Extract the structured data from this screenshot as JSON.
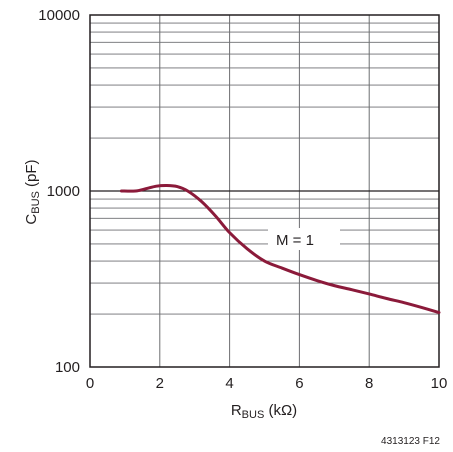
{
  "chart_data": {
    "type": "line",
    "xlabel": {
      "main": "R",
      "sub": "BUS",
      "unit": " (kΩ)"
    },
    "ylabel": {
      "main": "C",
      "sub": "BUS",
      "unit": " (pF)"
    },
    "xlim": [
      0,
      10
    ],
    "ylim": [
      100,
      10000
    ],
    "yscale": "log",
    "grid": true,
    "x_ticks": [
      "0",
      "2",
      "4",
      "6",
      "8",
      "10"
    ],
    "y_ticks": [
      "100",
      "1000",
      "10000"
    ],
    "series": [
      {
        "name": "M = 1",
        "color": "#8b1a3a",
        "x": [
          0.9,
          1.3,
          1.6,
          1.9,
          2.2,
          2.5,
          2.8,
          3.2,
          3.6,
          4.0,
          4.5,
          5.0,
          5.5,
          6.0,
          6.5,
          7.0,
          7.5,
          8.0,
          8.5,
          9.0,
          9.5,
          10.0
        ],
        "y": [
          1000,
          1000,
          1030,
          1065,
          1075,
          1060,
          1000,
          870,
          720,
          580,
          470,
          400,
          365,
          335,
          310,
          290,
          275,
          260,
          245,
          232,
          218,
          204
        ]
      }
    ],
    "annotations": [
      "M = 1"
    ],
    "figure_id": "4313123 F12"
  }
}
